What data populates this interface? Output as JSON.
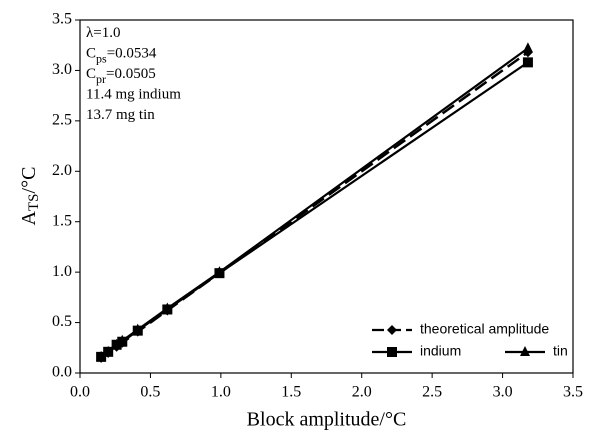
{
  "chart_data": {
    "type": "line",
    "xlabel": "Block amplitude/°C",
    "ylabel": {
      "base": "A",
      "sub": "TS",
      "rest": "/°C"
    },
    "annotations": [
      {
        "base": "λ=1.0"
      },
      {
        "base": "C",
        "sub": "ps",
        "rest": "=0.0534"
      },
      {
        "base": "C",
        "sub": "pr",
        "rest": "=0.0505"
      },
      {
        "base": "11.4 mg indium"
      },
      {
        "base": "13.7 mg tin"
      }
    ],
    "x": [
      0.15,
      0.2,
      0.26,
      0.3,
      0.41,
      0.62,
      0.99,
      3.18
    ],
    "series": [
      {
        "name": "theoretical amplitude",
        "color": "#000000",
        "marker": "diamond",
        "dash": true,
        "values": [
          0.15,
          0.2,
          0.26,
          0.3,
          0.41,
          0.62,
          0.99,
          3.18
        ]
      },
      {
        "name": "indium",
        "color": "#000000",
        "marker": "square",
        "dash": false,
        "values": [
          0.16,
          0.21,
          0.28,
          0.31,
          0.42,
          0.63,
          0.99,
          3.08
        ]
      },
      {
        "name": "tin",
        "color": "#000000",
        "marker": "triangle",
        "dash": false,
        "values": [
          0.16,
          0.21,
          0.28,
          0.32,
          0.43,
          0.64,
          1.0,
          3.22
        ]
      }
    ],
    "xlim": [
      0,
      3.5
    ],
    "xticks": [
      {
        "value": 0,
        "label": "0.0"
      },
      0.5,
      {
        "value": 1,
        "label": "1.0"
      },
      1.5,
      {
        "value": 2,
        "label": "2.0"
      },
      2.5,
      {
        "value": 3,
        "label": "3.0"
      },
      3.5
    ],
    "ylim": [
      0,
      3.5
    ],
    "yticks": [
      {
        "value": 0,
        "label": "0.0"
      },
      0.5,
      {
        "value": 1,
        "label": "1.0"
      },
      1.5,
      {
        "value": 2,
        "label": "2.0"
      },
      2.5,
      {
        "value": 3,
        "label": "3.0"
      },
      3.5
    ],
    "grid": false,
    "legend": "lower right"
  }
}
